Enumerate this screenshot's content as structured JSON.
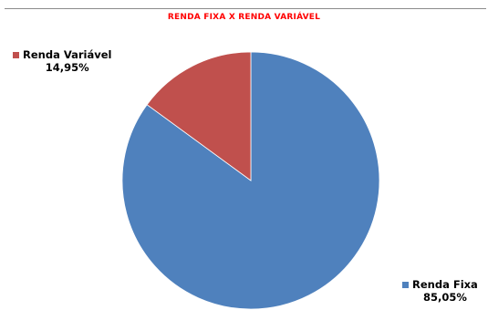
{
  "chart_data": {
    "type": "pie",
    "title": "RENDA FIXA X RENDA VARIÁVEL",
    "slices": [
      {
        "label": "Renda Fixa",
        "value": 85.05,
        "pct_label": "85,05%",
        "color": "#4f81bd"
      },
      {
        "label": "Renda Variável",
        "value": 14.95,
        "pct_label": "14,95%",
        "color": "#c0504d"
      }
    ],
    "colors": {
      "title": "#ff0000"
    }
  }
}
